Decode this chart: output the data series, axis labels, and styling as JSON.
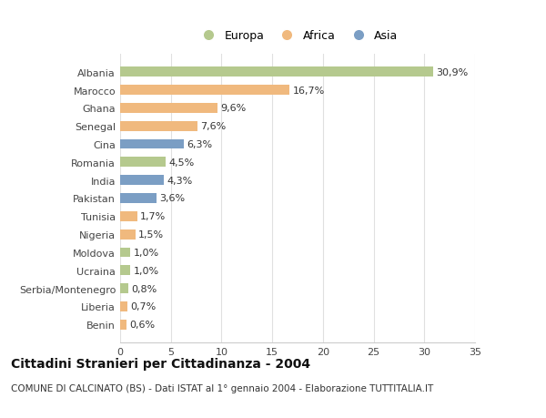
{
  "countries": [
    "Albania",
    "Marocco",
    "Ghana",
    "Senegal",
    "Cina",
    "Romania",
    "India",
    "Pakistan",
    "Tunisia",
    "Nigeria",
    "Moldova",
    "Ucraina",
    "Serbia/Montenegro",
    "Liberia",
    "Benin"
  ],
  "values": [
    30.9,
    16.7,
    9.6,
    7.6,
    6.3,
    4.5,
    4.3,
    3.6,
    1.7,
    1.5,
    1.0,
    1.0,
    0.8,
    0.7,
    0.6
  ],
  "labels": [
    "30,9%",
    "16,7%",
    "9,6%",
    "7,6%",
    "6,3%",
    "4,5%",
    "4,3%",
    "3,6%",
    "1,7%",
    "1,5%",
    "1,0%",
    "1,0%",
    "0,8%",
    "0,7%",
    "0,6%"
  ],
  "continents": [
    "Europa",
    "Africa",
    "Africa",
    "Africa",
    "Asia",
    "Europa",
    "Asia",
    "Asia",
    "Africa",
    "Africa",
    "Europa",
    "Europa",
    "Europa",
    "Africa",
    "Africa"
  ],
  "colors": {
    "Europa": "#b5c98e",
    "Africa": "#f0b97e",
    "Asia": "#7b9ec4"
  },
  "xlim": [
    0,
    35
  ],
  "xticks": [
    0,
    5,
    10,
    15,
    20,
    25,
    30,
    35
  ],
  "background_color": "#ffffff",
  "grid_color": "#e0e0e0",
  "title_line1": "Cittadini Stranieri per Cittadinanza - 2004",
  "title_line2": "COMUNE DI CALCINATO (BS) - Dati ISTAT al 1° gennaio 2004 - Elaborazione TUTTITALIA.IT",
  "bar_height": 0.55,
  "label_fontsize": 8,
  "tick_fontsize": 8,
  "title_fontsize": 10,
  "subtitle_fontsize": 7.5
}
